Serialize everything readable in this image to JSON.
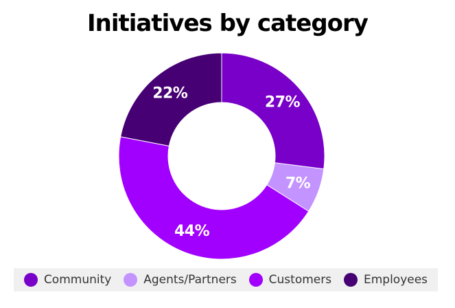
{
  "chart_data": {
    "type": "pie",
    "title": "Initiatives by category",
    "categories": [
      "Community",
      "Agents/Partners",
      "Customers",
      "Employees"
    ],
    "values": [
      27,
      7,
      44,
      22
    ],
    "labels": [
      "27%",
      "7%",
      "44%",
      "22%"
    ],
    "colors": [
      "#7800c8",
      "#c393ff",
      "#a100ff",
      "#460073"
    ],
    "unit": "%",
    "donut": true,
    "legend_position": "bottom",
    "label_color": "#ffffff"
  },
  "legend": {
    "items": [
      {
        "label": "Community",
        "color": "#7800c8"
      },
      {
        "label": "Agents/Partners",
        "color": "#c393ff"
      },
      {
        "label": "Customers",
        "color": "#a100ff"
      },
      {
        "label": "Employees",
        "color": "#460073"
      }
    ]
  }
}
